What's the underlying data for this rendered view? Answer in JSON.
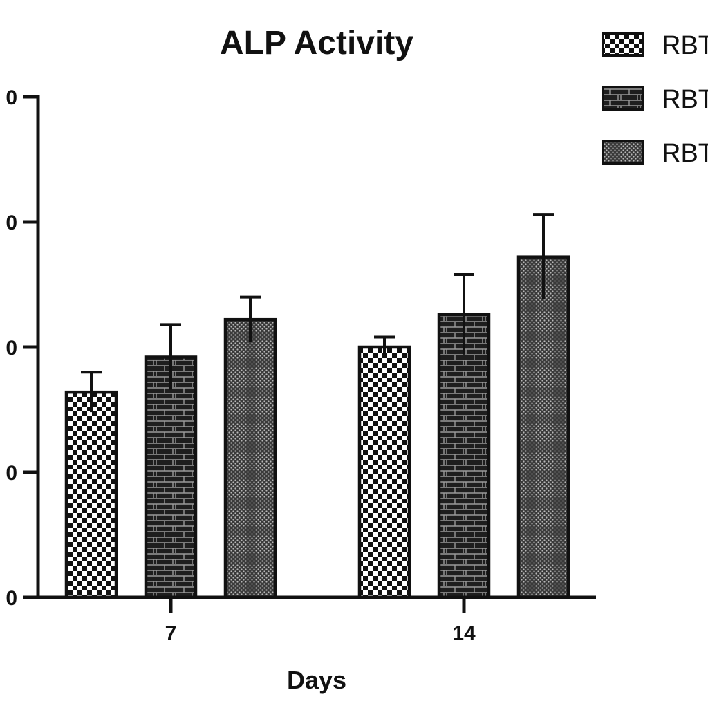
{
  "chart_data": {
    "type": "bar",
    "title": "ALP Activity",
    "xlabel": "Days",
    "ylabel": "",
    "categories": [
      "7",
      "14"
    ],
    "yticks": [
      "0",
      "0",
      "0",
      "0",
      "0"
    ],
    "ylim": [
      0,
      200
    ],
    "grid": false,
    "legend_position": "top-right",
    "series": [
      {
        "name": "RBT",
        "pattern": "checker",
        "values": [
          82,
          100
        ],
        "errors": [
          8,
          4
        ]
      },
      {
        "name": "RBT",
        "pattern": "brick",
        "values": [
          96,
          113
        ],
        "errors": [
          13,
          16
        ]
      },
      {
        "name": "RBT",
        "pattern": "dots",
        "values": [
          111,
          136
        ],
        "errors": [
          9,
          17
        ]
      }
    ]
  }
}
